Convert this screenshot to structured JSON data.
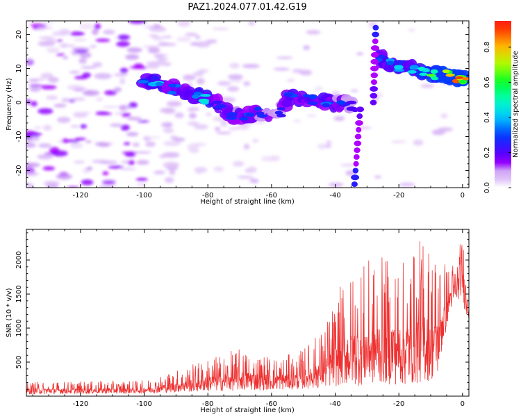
{
  "title": "PAZ1.2024.077.01.42.G19",
  "colors": {
    "line": "#ee3030",
    "axes": "#000000"
  },
  "chart_data": [
    {
      "type": "heatmap",
      "xlabel": "Height of straight line (km)",
      "ylabel": "Frequency (Hz)",
      "xlim": [
        -137,
        2
      ],
      "ylim": [
        -25,
        24
      ],
      "xticks": [
        -120,
        -100,
        -80,
        -60,
        -40,
        -20,
        0
      ],
      "yticks": [
        -20,
        -10,
        0,
        10,
        20
      ],
      "colormap": "gist_rainbow",
      "ridge": [
        {
          "x": -100,
          "y": 6,
          "a": 0.35
        },
        {
          "x": -96,
          "y": 6,
          "a": 0.45
        },
        {
          "x": -90,
          "y": 4,
          "a": 0.35
        },
        {
          "x": -84,
          "y": 2,
          "a": 0.4
        },
        {
          "x": -80,
          "y": 1,
          "a": 0.45
        },
        {
          "x": -76,
          "y": -1,
          "a": 0.3
        },
        {
          "x": -72,
          "y": -4,
          "a": 0.3
        },
        {
          "x": -68,
          "y": -4,
          "a": 0.35
        },
        {
          "x": -64,
          "y": -3,
          "a": 0.3
        },
        {
          "x": -58,
          "y": -3,
          "a": 0.25
        },
        {
          "x": -54,
          "y": 2,
          "a": 0.35
        },
        {
          "x": -48,
          "y": 1,
          "a": 0.35
        },
        {
          "x": -42,
          "y": 0,
          "a": 0.35
        },
        {
          "x": -38,
          "y": 0,
          "a": 0.3
        },
        {
          "x": -35,
          "y": -1,
          "a": 0.25
        },
        {
          "x": -26,
          "y": 13,
          "a": 0.35
        },
        {
          "x": -24,
          "y": 12,
          "a": 0.4
        },
        {
          "x": -20,
          "y": 10,
          "a": 0.45
        },
        {
          "x": -16,
          "y": 10,
          "a": 0.45
        },
        {
          "x": -12,
          "y": 9,
          "a": 0.55
        },
        {
          "x": -8,
          "y": 8,
          "a": 0.6
        },
        {
          "x": -4,
          "y": 8,
          "a": 0.75
        },
        {
          "x": -1,
          "y": 7,
          "a": 0.9
        },
        {
          "x": 1,
          "y": 7,
          "a": 0.8
        }
      ]
    },
    {
      "type": "line",
      "xlabel": "Height of straight line (km)",
      "ylabel": "SNR (10 * v/v)",
      "xlim": [
        -137,
        2
      ],
      "ylim": [
        0,
        2450
      ],
      "xticks": [
        -120,
        -100,
        -80,
        -60,
        -40,
        -20,
        0
      ],
      "yticks": [
        500,
        1000,
        1500,
        2000
      ],
      "envelope": [
        {
          "x": -137,
          "lo": 30,
          "hi": 210
        },
        {
          "x": -100,
          "lo": 40,
          "hi": 230
        },
        {
          "x": -88,
          "lo": 60,
          "hi": 420
        },
        {
          "x": -80,
          "lo": 70,
          "hi": 560
        },
        {
          "x": -70,
          "lo": 80,
          "hi": 700
        },
        {
          "x": -60,
          "lo": 90,
          "hi": 600
        },
        {
          "x": -52,
          "lo": 100,
          "hi": 620
        },
        {
          "x": -44,
          "lo": 120,
          "hi": 1000
        },
        {
          "x": -38,
          "lo": 150,
          "hi": 1650
        },
        {
          "x": -33,
          "lo": 150,
          "hi": 1950
        },
        {
          "x": -25,
          "lo": 180,
          "hi": 2050
        },
        {
          "x": -18,
          "lo": 150,
          "hi": 2000
        },
        {
          "x": -12,
          "lo": 200,
          "hi": 2400
        },
        {
          "x": -8,
          "lo": 250,
          "hi": 2250
        },
        {
          "x": -4,
          "lo": 1250,
          "hi": 1900
        },
        {
          "x": 0,
          "lo": 1500,
          "hi": 2350
        },
        {
          "x": 1,
          "lo": 1150,
          "hi": 2250
        },
        {
          "x": 2,
          "lo": 1150,
          "hi": 1900
        }
      ]
    }
  ],
  "colorbar": {
    "label": "Normalized spectral amplitude",
    "ticks": [
      "0.0",
      "0.2",
      "0.4",
      "0.6",
      "0.8"
    ],
    "tick_values": [
      0.0,
      0.2,
      0.4,
      0.6,
      0.8
    ],
    "range": [
      0,
      0.95
    ]
  }
}
